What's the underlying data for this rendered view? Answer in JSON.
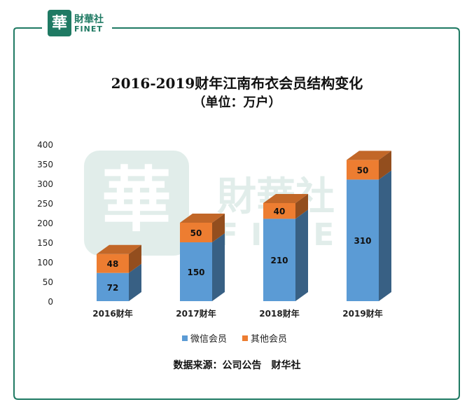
{
  "logo": {
    "glyph": "華",
    "name_cn": "財華社",
    "name_en": "FINET"
  },
  "watermark": {
    "cn": "財華社",
    "en": "FINET"
  },
  "chart_data": {
    "type": "bar",
    "stacked": true,
    "title": "2016-2019财年江南布衣会员结构变化",
    "subtitle": "（单位：万户）",
    "categories": [
      "2016财年",
      "2017财年",
      "2018财年",
      "2019财年"
    ],
    "series": [
      {
        "name": "微信会员",
        "values": [
          72,
          150,
          210,
          310
        ],
        "color": "#5b9bd5"
      },
      {
        "name": "其他会员",
        "values": [
          48,
          50,
          40,
          50
        ],
        "color": "#ed7d31"
      }
    ],
    "ylim": [
      0,
      400
    ],
    "yticks": [
      0,
      50,
      100,
      150,
      200,
      250,
      300,
      350,
      400
    ],
    "legend_position": "bottom",
    "grid": false
  },
  "source": "数据来源：公司公告　财华社",
  "frame_color": "#1f7a63"
}
